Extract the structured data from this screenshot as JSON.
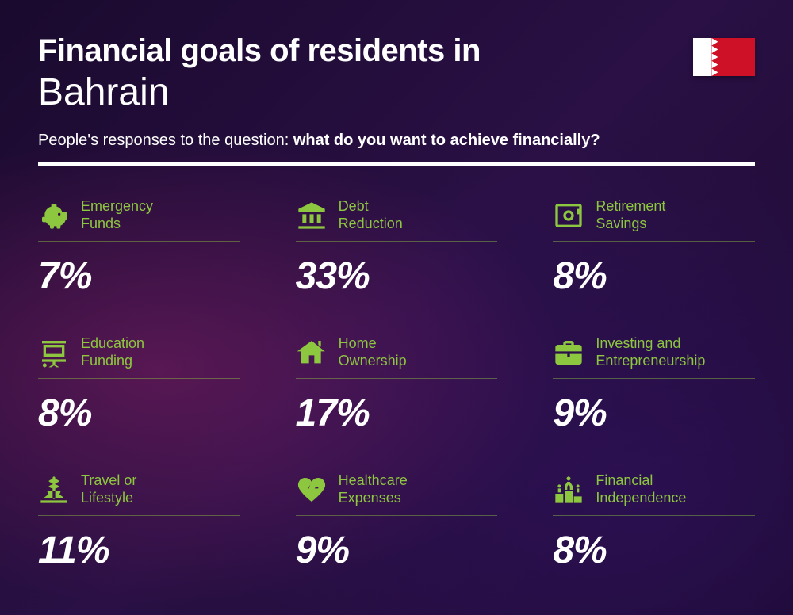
{
  "header": {
    "title_prefix": "Financial goals of residents in",
    "country": "Bahrain",
    "subtitle_plain": "People's responses to the question: ",
    "subtitle_bold": "what do you want to achieve financially?"
  },
  "styling": {
    "accent_color": "#8dc63f",
    "text_color": "#ffffff",
    "value_fontsize": 48,
    "label_fontsize": 18,
    "title_fontsize": 40,
    "country_fontsize": 48,
    "flag_colors": {
      "white": "#ffffff",
      "red": "#ce1126"
    }
  },
  "items": [
    {
      "icon": "piggy-bank-icon",
      "label": "Emergency Funds",
      "value": "7%"
    },
    {
      "icon": "bank-icon",
      "label": "Debt Reduction",
      "value": "33%"
    },
    {
      "icon": "safe-icon",
      "label": "Retirement Savings",
      "value": "8%"
    },
    {
      "icon": "presentation-icon",
      "label": "Education Funding",
      "value": "8%"
    },
    {
      "icon": "house-icon",
      "label": "Home Ownership",
      "value": "17%"
    },
    {
      "icon": "briefcase-icon",
      "label": "Investing and Entrepreneurship",
      "value": "9%"
    },
    {
      "icon": "travel-icon",
      "label": "Travel or Lifestyle",
      "value": "11%"
    },
    {
      "icon": "heart-pulse-icon",
      "label": "Healthcare Expenses",
      "value": "9%"
    },
    {
      "icon": "podium-icon",
      "label": "Financial Independence",
      "value": "8%"
    }
  ]
}
